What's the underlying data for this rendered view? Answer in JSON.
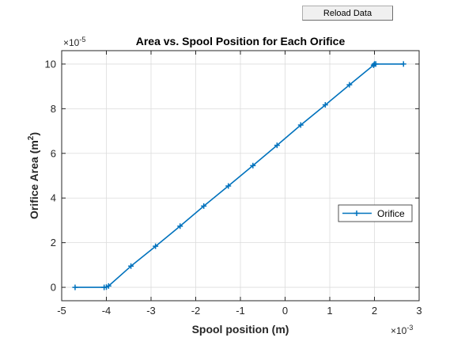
{
  "toolbar": {
    "reload_label": "Reload Data"
  },
  "colors": {
    "series": "#0072BD",
    "grid": "#dcdcdc",
    "axis": "#262626"
  },
  "chart_data": {
    "type": "line",
    "title": "Area vs. Spool Position for Each Orifice",
    "xlabel": "Spool position (m)",
    "ylabel_main": "Orifice Area (m",
    "ylabel_sup": "2",
    "ylabel_close": ")",
    "x_exponent_text": "×10",
    "x_exponent_sup": "-3",
    "y_exponent_text": "×10",
    "y_exponent_sup": "-5",
    "x_scale": 0.001,
    "y_scale": 1e-05,
    "xlim": [
      -5,
      3
    ],
    "ylim": [
      -0.6,
      10.6
    ],
    "xticks": [
      -5,
      -4,
      -3,
      -2,
      -1,
      0,
      1,
      2,
      3
    ],
    "xtick_labels": [
      "-5",
      "-4",
      "-3",
      "-2",
      "-1",
      "0",
      "1",
      "2",
      "3"
    ],
    "yticks": [
      0,
      2,
      4,
      6,
      8,
      10
    ],
    "ytick_labels": [
      "0",
      "2",
      "4",
      "6",
      "8",
      "10"
    ],
    "grid": true,
    "legend_position": "right",
    "series": [
      {
        "name": "Orifice",
        "x": [
          -4.7,
          -4.05,
          -4.0,
          -3.95,
          -3.45,
          -2.9,
          -2.35,
          -1.82,
          -1.27,
          -0.72,
          -0.18,
          0.35,
          0.9,
          1.44,
          1.98,
          2.0,
          2.03,
          2.65
        ],
        "y": [
          0,
          0,
          0.01,
          0.06,
          0.95,
          1.84,
          2.74,
          3.64,
          4.54,
          5.45,
          6.36,
          7.27,
          8.17,
          9.07,
          9.95,
          10.0,
          10.0,
          10.0
        ]
      }
    ]
  }
}
